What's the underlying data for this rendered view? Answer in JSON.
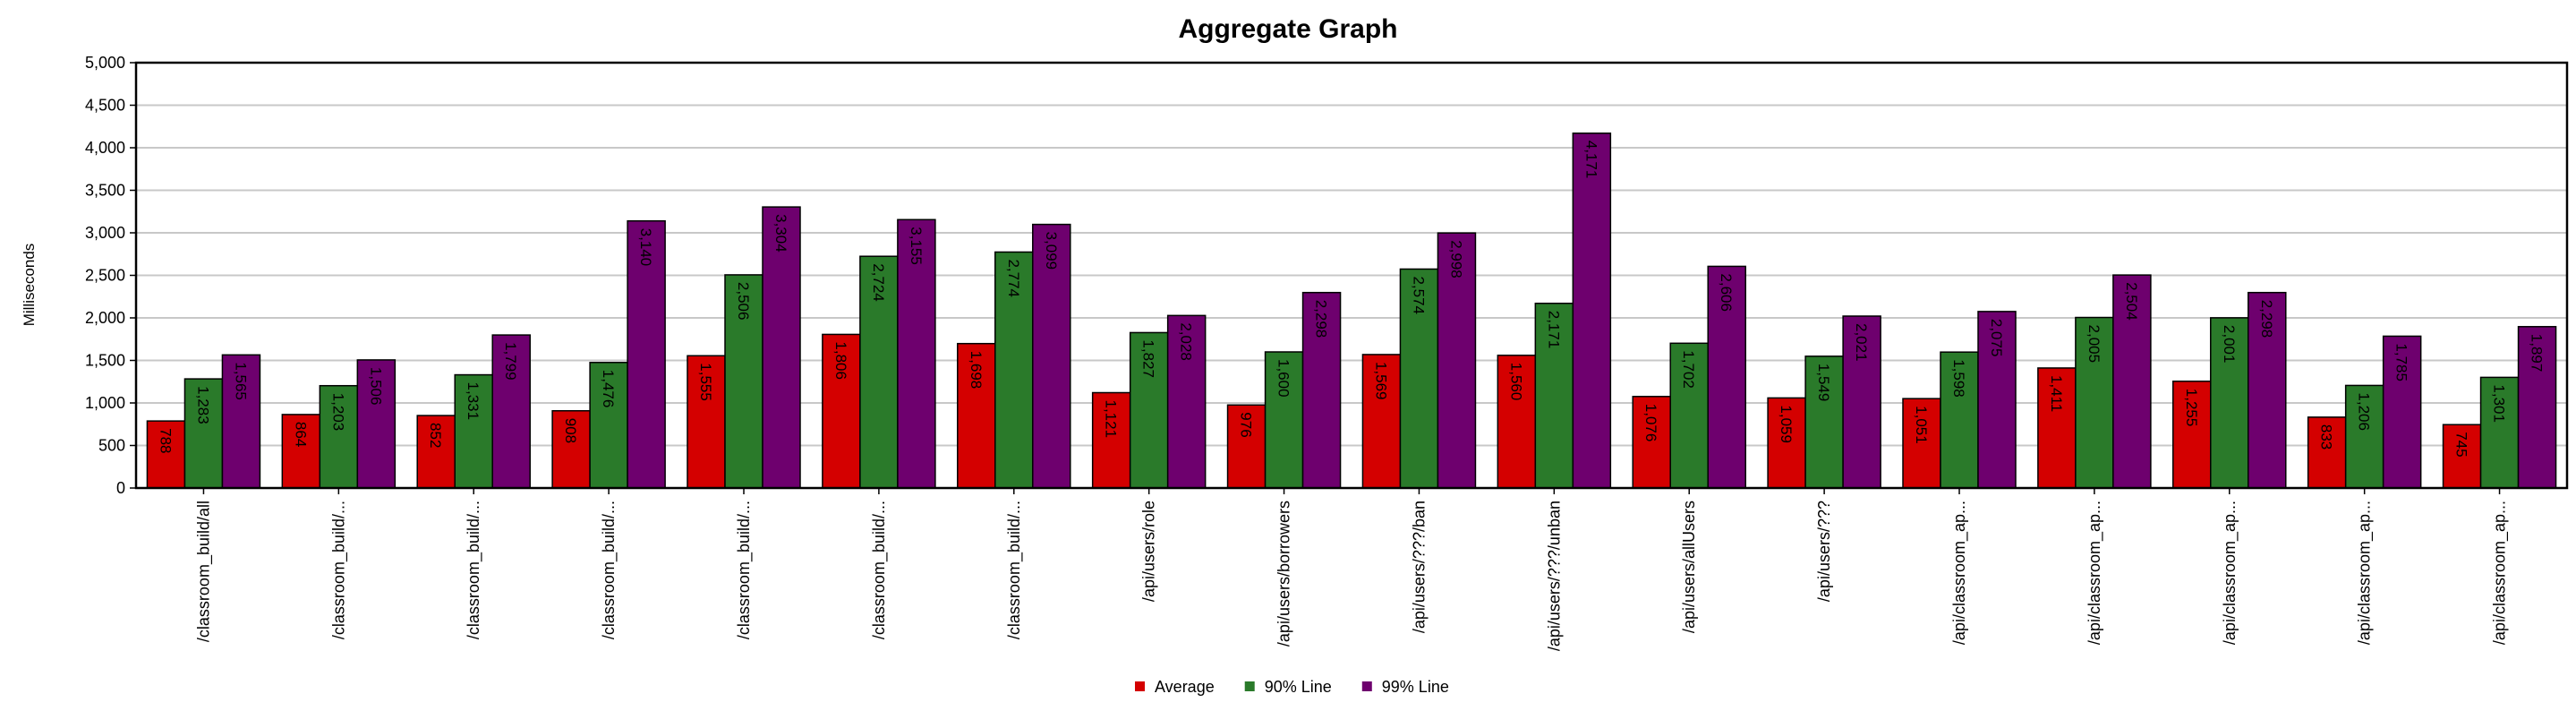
{
  "chart_data": {
    "type": "bar",
    "title": "Aggregate Graph",
    "ylabel": "Milliseconds",
    "xlabel": "",
    "ylim": [
      0,
      5000
    ],
    "yticks": [
      0,
      500,
      1000,
      1500,
      2000,
      2500,
      3000,
      3500,
      4000,
      4500,
      5000
    ],
    "grid": true,
    "legend_position": "bottom-center",
    "categories": [
      "/classroom_build/all",
      "/classroom_build/...",
      "/classroom_build/...",
      "/classroom_build/...",
      "/classroom_build/...",
      "/classroom_build/...",
      "/classroom_build/...",
      "/api/users/role",
      "/api/users/borrowers",
      "/api/users/???/ban",
      "/api/users/???/unban",
      "/api/users/allUsers",
      "/api/users/???",
      "/api/classroom_ap...",
      "/api/classroom_ap...",
      "/api/classroom_ap...",
      "/api/classroom_ap...",
      "/api/classroom_ap..."
    ],
    "series": [
      {
        "name": "Average",
        "color": "#d40000",
        "values": [
          788,
          864,
          852,
          908,
          1555,
          1806,
          1698,
          1121,
          976,
          1569,
          1560,
          1076,
          1059,
          1051,
          1411,
          1255,
          833,
          745
        ]
      },
      {
        "name": "90% Line",
        "color": "#2a7a2a",
        "values": [
          1283,
          1203,
          1331,
          1476,
          2506,
          2724,
          2774,
          1827,
          1600,
          2574,
          2171,
          1702,
          1549,
          1598,
          2005,
          2001,
          1206,
          1301
        ]
      },
      {
        "name": "99% Line",
        "color": "#6e006e",
        "values": [
          1565,
          1506,
          1799,
          3140,
          3304,
          3155,
          3099,
          2028,
          2298,
          2998,
          4171,
          2606,
          2021,
          2075,
          2504,
          2298,
          1785,
          1897
        ]
      }
    ]
  }
}
